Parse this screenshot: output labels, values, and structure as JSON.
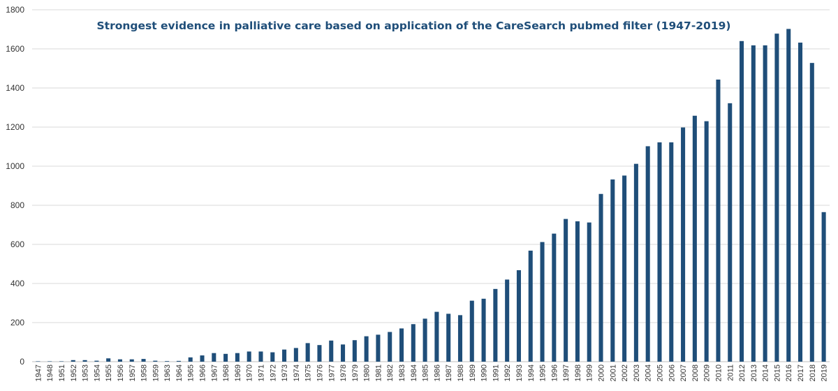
{
  "chart_data": {
    "type": "bar",
    "title": "Strongest evidence in palliative care based on application of the CareSearch pubmed filter (1947-2019)",
    "xlabel": "",
    "ylabel": "",
    "ylim": [
      0,
      1800
    ],
    "yticks": [
      0,
      200,
      400,
      600,
      800,
      1000,
      1200,
      1400,
      1600,
      1800
    ],
    "grid": true,
    "legend": "none",
    "bar_color": "#1f4e79",
    "categories": [
      "1947",
      "1948",
      "1951",
      "1952",
      "1953",
      "1954",
      "1955",
      "1956",
      "1957",
      "1958",
      "1959",
      "1963",
      "1964",
      "1965",
      "1966",
      "1967",
      "1968",
      "1969",
      "1970",
      "1971",
      "1972",
      "1973",
      "1974",
      "1975",
      "1976",
      "1977",
      "1978",
      "1979",
      "1980",
      "1981",
      "1982",
      "1983",
      "1984",
      "1985",
      "1986",
      "1987",
      "1988",
      "1989",
      "1990",
      "1991",
      "1992",
      "1993",
      "1994",
      "1995",
      "1996",
      "1997",
      "1998",
      "1999",
      "2000",
      "2001",
      "2002",
      "2003",
      "2004",
      "2005",
      "2006",
      "2007",
      "2008",
      "2009",
      "2010",
      "2011",
      "2012",
      "2013",
      "2014",
      "2015",
      "2016",
      "2017",
      "2018",
      "2019"
    ],
    "values": [
      2,
      2,
      2,
      8,
      8,
      5,
      17,
      12,
      12,
      14,
      5,
      3,
      4,
      22,
      32,
      44,
      40,
      44,
      52,
      52,
      48,
      62,
      70,
      95,
      85,
      108,
      88,
      110,
      130,
      138,
      152,
      170,
      192,
      220,
      255,
      245,
      238,
      312,
      322,
      372,
      420,
      468,
      568,
      612,
      655,
      730,
      718,
      712,
      858,
      932,
      952,
      1012,
      1102,
      1122,
      1122,
      1198,
      1258,
      1230,
      1443,
      1322,
      1640,
      1618,
      1618,
      1678,
      1702,
      1632,
      1528,
      765
    ]
  }
}
